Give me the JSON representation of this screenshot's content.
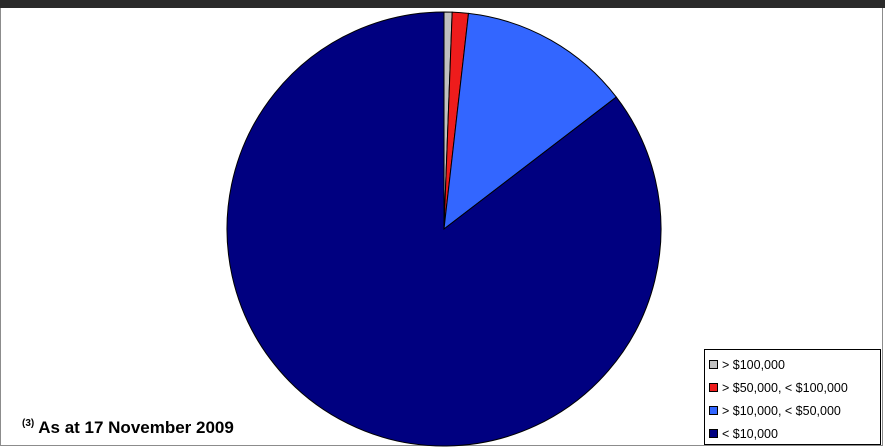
{
  "chart_data": {
    "type": "pie",
    "title": "",
    "slices": [
      {
        "label": "> $100,000",
        "value": 0.6,
        "color": "#c0c0c0"
      },
      {
        "label": "> $50,000, < $100,000",
        "value": 1.2,
        "color": "#ee1c1c"
      },
      {
        "label": "> $10,000, < $50,000",
        "value": 12.8,
        "color": "#3366ff"
      },
      {
        "label": "< $10,000",
        "value": 85.4,
        "color": "#000080"
      }
    ],
    "start_angle_deg": 0,
    "direction": "clockwise",
    "legend_position": "bottom-right"
  },
  "footnote": {
    "marker": "(3)",
    "text": "As at 17 November 2009"
  }
}
